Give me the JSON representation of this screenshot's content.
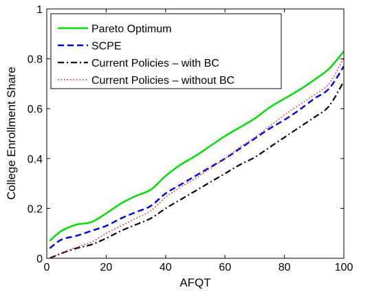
{
  "chart_data": {
    "type": "line",
    "xlabel": "AFQT",
    "ylabel": "College Enrollment Share",
    "xlim": [
      0,
      100
    ],
    "ylim": [
      0,
      1
    ],
    "x_ticks": [
      0,
      20,
      40,
      60,
      80,
      100
    ],
    "y_ticks": [
      0,
      0.2,
      0.4,
      0.6,
      0.8,
      1
    ],
    "x_tick_labels": [
      "0",
      "20",
      "40",
      "60",
      "80",
      "100"
    ],
    "y_tick_labels": [
      "0",
      "0.2",
      "0.4",
      "0.6",
      "0.8",
      "1"
    ],
    "grid": false,
    "legend_position": "top-left",
    "x": [
      1,
      5,
      10,
      15,
      20,
      25,
      30,
      35,
      40,
      45,
      50,
      55,
      60,
      65,
      70,
      75,
      80,
      85,
      90,
      95,
      100
    ],
    "series": [
      {
        "name": "Pareto Optimum",
        "color": "#00dd00",
        "style": "solid",
        "values": [
          0.07,
          0.11,
          0.135,
          0.145,
          0.18,
          0.22,
          0.25,
          0.275,
          0.33,
          0.375,
          0.41,
          0.45,
          0.49,
          0.525,
          0.56,
          0.605,
          0.64,
          0.675,
          0.715,
          0.76,
          0.83
        ]
      },
      {
        "name": "SCPE",
        "color": "#0000ff",
        "style": "dashed",
        "values": [
          0.04,
          0.075,
          0.09,
          0.11,
          0.13,
          0.16,
          0.185,
          0.21,
          0.26,
          0.295,
          0.33,
          0.365,
          0.4,
          0.44,
          0.48,
          0.52,
          0.555,
          0.595,
          0.64,
          0.68,
          0.77
        ]
      },
      {
        "name": "Current Policies –  with BC",
        "color": "#000000",
        "style": "dashdot",
        "values": [
          0.0,
          0.02,
          0.04,
          0.055,
          0.08,
          0.11,
          0.135,
          0.16,
          0.2,
          0.235,
          0.27,
          0.305,
          0.34,
          0.375,
          0.405,
          0.445,
          0.485,
          0.525,
          0.565,
          0.61,
          0.71
        ]
      },
      {
        "name": "Current Policies –  without BC",
        "color": "#ff0000",
        "style": "dotted",
        "values": [
          0.0,
          0.02,
          0.045,
          0.065,
          0.1,
          0.13,
          0.16,
          0.19,
          0.245,
          0.285,
          0.32,
          0.36,
          0.4,
          0.445,
          0.485,
          0.53,
          0.575,
          0.615,
          0.655,
          0.7,
          0.805
        ]
      }
    ]
  }
}
